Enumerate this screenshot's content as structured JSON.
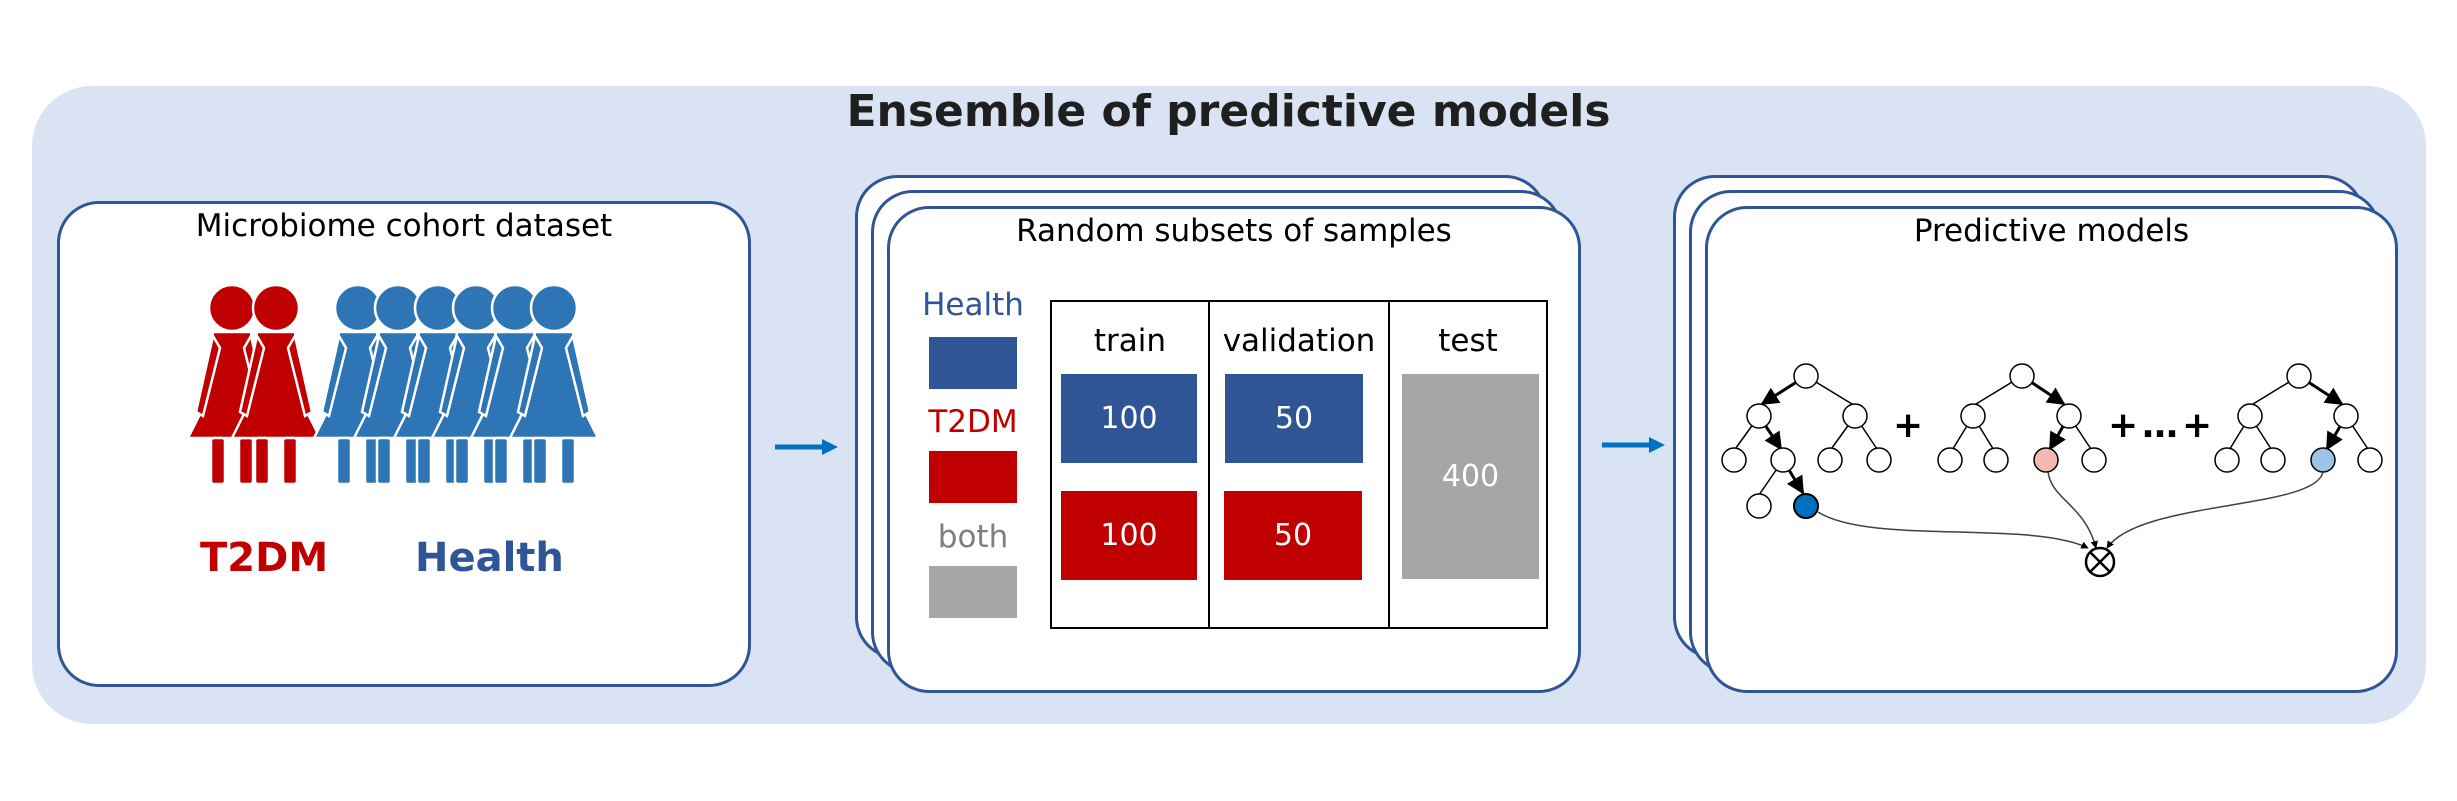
{
  "title": "Ensemble of predictive models",
  "panels": {
    "cohort": {
      "title": "Microbiome cohort dataset",
      "t2dm_label": "T2DM",
      "health_label": "Health"
    },
    "subsets": {
      "title": "Random subsets of samples",
      "legend": [
        {
          "label": "Health",
          "color": "#2f5597"
        },
        {
          "label": "T2DM",
          "color": "#c00000"
        },
        {
          "label": "both",
          "color": "#a6a6a6"
        }
      ],
      "columns": {
        "train": "train",
        "validation": "validation",
        "test": "test"
      },
      "values": {
        "train_health": "100",
        "train_t2dm": "100",
        "val_health": "50",
        "val_t2dm": "50",
        "test_both": "400"
      }
    },
    "models": {
      "title": "Predictive models",
      "plus": "+",
      "ellipsis": "…"
    }
  },
  "colors": {
    "health": "#2f5597",
    "t2dm": "#c00000",
    "person_blue": "#2e75b6",
    "accent_arrow": "#0070c0",
    "panel_bg": "#dae3f3"
  }
}
